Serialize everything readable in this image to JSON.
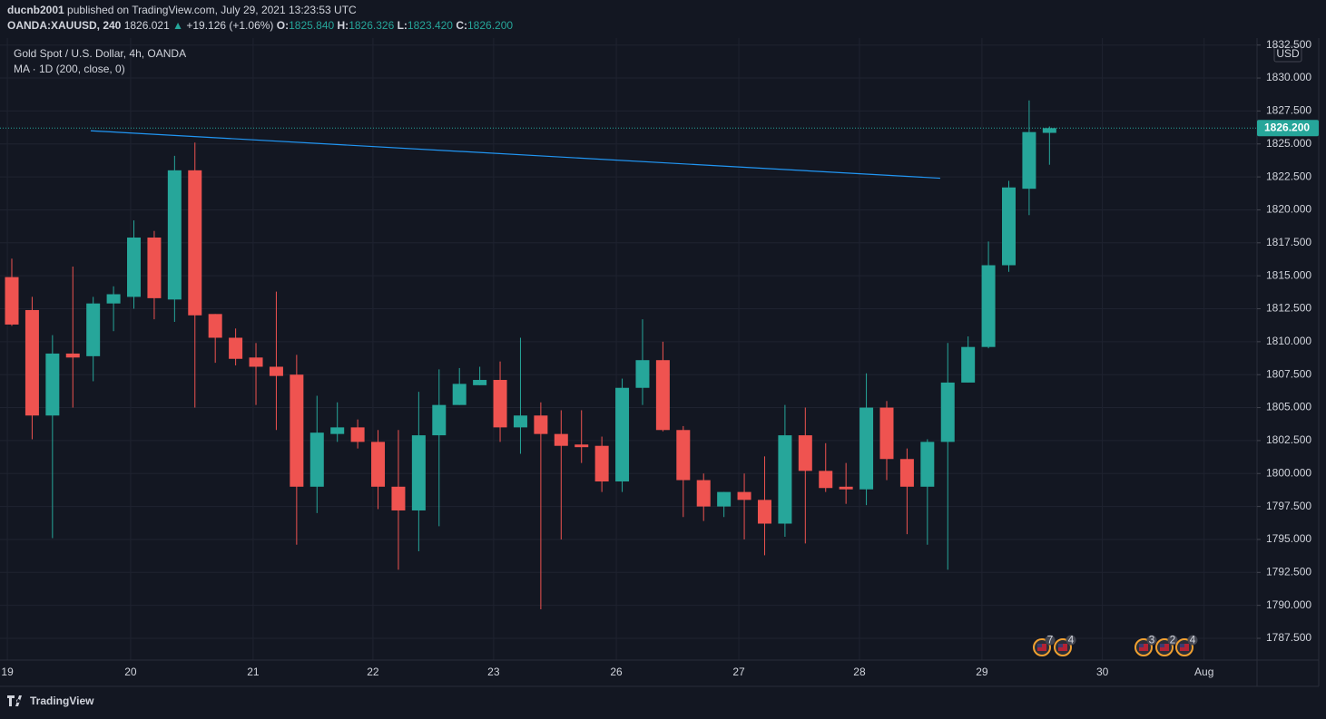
{
  "header": {
    "author": "ducnb2001",
    "published": "published on TradingView.com, July 29, 2021 13:23:53 UTC",
    "symbol": "OANDA:XAUUSD, 240",
    "price": "1826.021",
    "arrow": "▲",
    "change": "+19.126 (+1.06%)",
    "o_label": "O:",
    "o": "1825.840",
    "h_label": "H:",
    "h": "1826.326",
    "l_label": "L:",
    "l": "1823.420",
    "c_label": "C:",
    "c": "1826.200"
  },
  "chart_data": {
    "type": "candlestick",
    "title": "Gold Spot / U.S. Dollar, 4h, OANDA",
    "currency": "USD",
    "up_color": "#26a69a",
    "down_color": "#ef5350",
    "grid": true,
    "categories": [
      null,
      null,
      null,
      null,
      null,
      null,
      null,
      null,
      null,
      null,
      null,
      null,
      null,
      null,
      null,
      null,
      null,
      null,
      null,
      null,
      null,
      null,
      null,
      null,
      null,
      null,
      null,
      null,
      null,
      null,
      null,
      null,
      null,
      null,
      null,
      null,
      null,
      null,
      null,
      null,
      null,
      null,
      null,
      null,
      null,
      null,
      null,
      null,
      null,
      null,
      null,
      null
    ],
    "open": [
      1814.9,
      1812.4,
      1804.4,
      1809.1,
      1808.9,
      1812.9,
      1813.4,
      1817.9,
      1813.2,
      1823.0,
      1812.1,
      1810.3,
      1808.8,
      1808.1,
      1807.5,
      1799.0,
      1803.0,
      1803.5,
      1802.4,
      1799.0,
      1797.2,
      1802.9,
      1805.2,
      1806.7,
      1807.1,
      1803.5,
      1804.4,
      1803.0,
      1802.2,
      1802.1,
      1799.4,
      1806.5,
      1808.6,
      1803.3,
      1799.5,
      1797.5,
      1798.6,
      1798.0,
      1796.2,
      1802.9,
      1800.2,
      1799.0,
      1798.8,
      1805.0,
      1801.1,
      1799.0,
      1802.4,
      1806.9,
      1809.6,
      1815.8,
      1821.6,
      1825.84
    ],
    "high": [
      1816.3,
      1813.4,
      1810.5,
      1815.7,
      1813.4,
      1814.2,
      1819.2,
      1818.4,
      1824.1,
      1825.1,
      1812.1,
      1811.0,
      1809.9,
      1813.8,
      1809.0,
      1805.9,
      1805.4,
      1804.1,
      1803.3,
      1803.3,
      1806.2,
      1807.9,
      1808.0,
      1808.1,
      1808.5,
      1810.3,
      1805.4,
      1804.8,
      1804.8,
      1802.8,
      1807.2,
      1811.7,
      1810.0,
      1803.6,
      1800.0,
      1798.6,
      1800.0,
      1801.3,
      1805.2,
      1805.0,
      1802.3,
      1800.8,
      1807.6,
      1805.5,
      1801.9,
      1802.6,
      1809.9,
      1810.4,
      1817.6,
      1822.2,
      1828.3,
      1826.326
    ],
    "low": [
      1811.2,
      1802.6,
      1795.1,
      1805.0,
      1807.0,
      1810.8,
      1812.5,
      1811.7,
      1811.5,
      1805.0,
      1808.4,
      1808.2,
      1805.2,
      1803.3,
      1794.6,
      1797.0,
      1802.4,
      1801.9,
      1797.3,
      1792.7,
      1794.1,
      1796.0,
      1805.2,
      1806.7,
      1802.4,
      1801.5,
      1789.7,
      1795.0,
      1800.8,
      1798.6,
      1798.6,
      1805.2,
      1803.2,
      1796.7,
      1796.4,
      1796.7,
      1795.0,
      1793.8,
      1795.2,
      1794.7,
      1798.6,
      1797.7,
      1797.6,
      1799.5,
      1795.4,
      1794.6,
      1792.7,
      1806.9,
      1809.5,
      1815.3,
      1819.6,
      1823.42
    ],
    "close": [
      1811.3,
      1804.4,
      1809.1,
      1808.8,
      1812.9,
      1813.6,
      1817.9,
      1813.3,
      1823.0,
      1812.0,
      1810.3,
      1808.7,
      1808.1,
      1807.4,
      1799.0,
      1803.1,
      1803.5,
      1802.4,
      1799.0,
      1797.2,
      1802.9,
      1805.2,
      1806.8,
      1807.1,
      1803.5,
      1804.4,
      1803.0,
      1802.1,
      1802.0,
      1799.4,
      1806.5,
      1808.6,
      1803.3,
      1799.5,
      1797.5,
      1798.6,
      1798.0,
      1796.2,
      1802.9,
      1800.2,
      1798.9,
      1798.8,
      1805.0,
      1801.1,
      1799.0,
      1802.4,
      1806.9,
      1809.6,
      1815.8,
      1821.7,
      1825.9,
      1826.2
    ],
    "ma": {
      "name": "MA · 1D (200, close, 0)",
      "color": "#2196f3",
      "x": [
        3.88,
        45.63
      ],
      "values": [
        1826.0,
        1822.4
      ]
    },
    "last_price": {
      "value": 1826.2,
      "label": "1826.200"
    },
    "xlim": [
      -0.58,
      61.2
    ],
    "xticks": [
      {
        "value": -0.22,
        "label": "19"
      },
      {
        "value": 5.84,
        "label": "20"
      },
      {
        "value": 11.86,
        "label": "21"
      },
      {
        "value": 17.75,
        "label": "22"
      },
      {
        "value": 23.68,
        "label": "23"
      },
      {
        "value": 29.71,
        "label": "26"
      },
      {
        "value": 35.73,
        "label": "27"
      },
      {
        "value": 41.66,
        "label": "28"
      },
      {
        "value": 47.68,
        "label": "29"
      },
      {
        "value": 53.6,
        "label": "30"
      },
      {
        "value": 58.6,
        "label": "Aug"
      }
    ],
    "ylim": [
      1785.85,
      1833.03
    ],
    "yticks": [
      {
        "value": 1787.5,
        "label": "1787.500"
      },
      {
        "value": 1790,
        "label": "1790.000"
      },
      {
        "value": 1792.5,
        "label": "1792.500"
      },
      {
        "value": 1795,
        "label": "1795.000"
      },
      {
        "value": 1797.5,
        "label": "1797.500"
      },
      {
        "value": 1800,
        "label": "1800.000"
      },
      {
        "value": 1802.5,
        "label": "1802.500"
      },
      {
        "value": 1805,
        "label": "1805.000"
      },
      {
        "value": 1807.5,
        "label": "1807.500"
      },
      {
        "value": 1810,
        "label": "1810.000"
      },
      {
        "value": 1812.5,
        "label": "1812.500"
      },
      {
        "value": 1815,
        "label": "1815.000"
      },
      {
        "value": 1817.5,
        "label": "1817.500"
      },
      {
        "value": 1820,
        "label": "1820.000"
      },
      {
        "value": 1822.5,
        "label": "1822.500"
      },
      {
        "value": 1825,
        "label": "1825.000"
      },
      {
        "value": 1827.5,
        "label": "1827.500"
      },
      {
        "value": 1830,
        "label": "1830.000"
      },
      {
        "value": 1832.5,
        "label": "1832.500"
      }
    ],
    "events": [
      "7",
      "4",
      "3",
      "2",
      "4"
    ]
  },
  "footer": {
    "brand": "TradingView"
  }
}
